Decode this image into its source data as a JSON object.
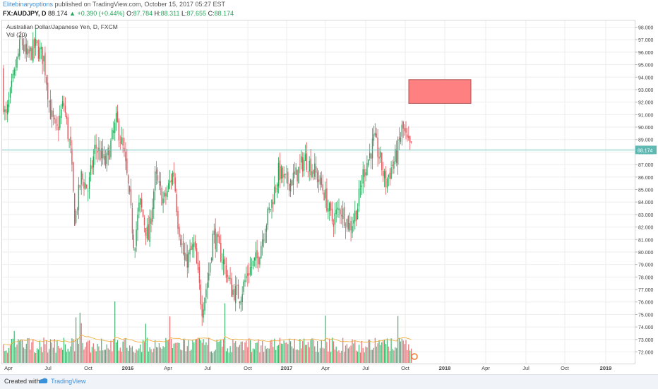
{
  "header": {
    "author": "Elitebinaryoptions",
    "published_text": " published on TradingView.com, October 15, 2017 05:27 EST",
    "symbol": "FX:AUDJPY, D",
    "last": "88.174",
    "change": "▲ +0.390 (+0.44%)",
    "open_label": "O:",
    "open": "87.784",
    "high_label": "H:",
    "high": "88.311",
    "low_label": "L:",
    "low": "87.655",
    "close_label": "C:",
    "close": "88.174"
  },
  "legend": {
    "title": "Australian Dollar/Japanese Yen, D, FXCM",
    "volume": "Vol (20)"
  },
  "footer": {
    "created_with": "Created with",
    "brand": "TradingView"
  },
  "colors": {
    "up": "#26a65b",
    "down": "#e0565b",
    "zone_fill": "#ff8080",
    "zone_stroke": "#b05050",
    "price_line": "#6fc6c0",
    "grid": "#eeeeee"
  },
  "chart_data": {
    "type": "candlestick",
    "title": "Australian Dollar/Japanese Yen, D, FXCM",
    "ylim": [
      71.0,
      98.5
    ],
    "y_ticks": [
      "98.000",
      "97.000",
      "96.000",
      "95.000",
      "94.000",
      "93.000",
      "92.000",
      "91.000",
      "90.000",
      "89.000",
      "88.000",
      "87.000",
      "86.000",
      "85.000",
      "84.000",
      "83.000",
      "82.000",
      "81.000",
      "80.000",
      "79.000",
      "78.000",
      "77.000",
      "76.000",
      "75.000",
      "74.000",
      "73.000",
      "72.000"
    ],
    "x_ticks": [
      "Apr",
      "Jul",
      "Oct",
      "2016",
      "Apr",
      "Jul",
      "Oct",
      "2017",
      "Apr",
      "Jul",
      "Oct",
      "2018",
      "Apr",
      "Jul",
      "Oct",
      "2019"
    ],
    "last_price": 88.174,
    "last_price_label": "88.174",
    "price_path": [
      [
        0,
        94.5
      ],
      [
        8,
        90.5
      ],
      [
        18,
        93.5
      ],
      [
        30,
        97.0
      ],
      [
        38,
        95.5
      ],
      [
        50,
        96.5
      ],
      [
        62,
        95.5
      ],
      [
        72,
        91.0
      ],
      [
        80,
        89.5
      ],
      [
        90,
        92.0
      ],
      [
        100,
        88.0
      ],
      [
        106,
        82.5
      ],
      [
        115,
        86.0
      ],
      [
        125,
        85.0
      ],
      [
        135,
        88.5
      ],
      [
        150,
        87.0
      ],
      [
        165,
        90.5
      ],
      [
        175,
        88.0
      ],
      [
        182,
        85.0
      ],
      [
        190,
        80.5
      ],
      [
        198,
        84.0
      ],
      [
        210,
        81.0
      ],
      [
        220,
        86.0
      ],
      [
        232,
        84.0
      ],
      [
        246,
        86.5
      ],
      [
        252,
        82.5
      ],
      [
        262,
        79.0
      ],
      [
        275,
        80.5
      ],
      [
        286,
        75.5
      ],
      [
        295,
        78.0
      ],
      [
        302,
        81.5
      ],
      [
        315,
        79.5
      ],
      [
        328,
        77.0
      ],
      [
        340,
        76.5
      ],
      [
        352,
        78.5
      ],
      [
        365,
        79.5
      ],
      [
        375,
        82.0
      ],
      [
        385,
        84.0
      ],
      [
        395,
        86.5
      ],
      [
        405,
        85.5
      ],
      [
        418,
        86.0
      ],
      [
        432,
        87.5
      ],
      [
        445,
        86.5
      ],
      [
        458,
        85.0
      ],
      [
        470,
        82.5
      ],
      [
        482,
        83.5
      ],
      [
        496,
        82.0
      ],
      [
        506,
        83.5
      ],
      [
        515,
        86.5
      ],
      [
        522,
        87.5
      ],
      [
        530,
        89.0
      ],
      [
        538,
        87.5
      ],
      [
        546,
        85.5
      ],
      [
        556,
        87.0
      ],
      [
        562,
        87.8
      ],
      [
        570,
        90.0
      ],
      [
        578,
        88.5
      ],
      [
        584,
        88.174
      ]
    ],
    "zone": {
      "x_start": 579,
      "x_end": 667,
      "y_top": 93.8,
      "y_bottom": 91.9
    },
    "volume_series": "daily volume bars with 20-period moving average"
  }
}
